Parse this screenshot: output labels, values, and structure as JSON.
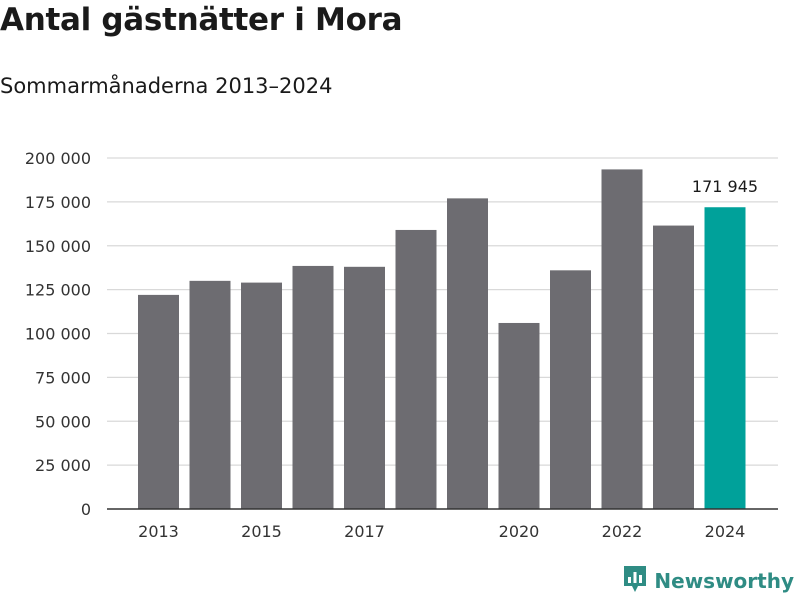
{
  "header": {
    "title": "Antal gästnätter i Mora",
    "subtitle": "Sommarmånaderna 2013–2024"
  },
  "brand": {
    "name": "Newsworthy",
    "icon": "newsworthy-logo-icon"
  },
  "colors": {
    "bar": "#6d6c71",
    "highlight": "#00a19a",
    "grid": "#d9d9d9",
    "axis": "#333333"
  },
  "chart_data": {
    "type": "bar",
    "title": "Antal gästnätter i Mora",
    "subtitle": "Sommarmånaderna 2013–2024",
    "xlabel": "",
    "ylabel": "",
    "categories": [
      "2013",
      "2014",
      "2015",
      "2016",
      "2017",
      "2018",
      "2019",
      "2020",
      "2021",
      "2022",
      "2023",
      "2024"
    ],
    "values": [
      122000,
      130000,
      129000,
      138500,
      138000,
      159000,
      177000,
      106000,
      136000,
      193500,
      161500,
      171945
    ],
    "x_tick_labels": [
      "2013",
      "",
      "2015",
      "",
      "2017",
      "",
      "",
      "2020",
      "",
      "2022",
      "",
      "2024"
    ],
    "ylim": [
      0,
      200000
    ],
    "y_ticks": [
      0,
      25000,
      50000,
      75000,
      100000,
      125000,
      150000,
      175000,
      200000
    ],
    "y_tick_labels": [
      "0",
      "25 000",
      "50 000",
      "75 000",
      "100 000",
      "125 000",
      "150 000",
      "175 000",
      "200 000"
    ],
    "grid": true,
    "highlight_index": 11,
    "annotations": [
      {
        "category": "2024",
        "text": "171 945"
      }
    ]
  }
}
